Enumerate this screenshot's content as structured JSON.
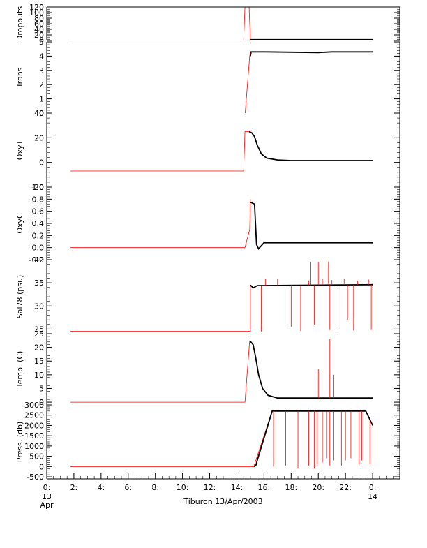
{
  "footer_title": "Tiburon 13/Apr/2003",
  "colors": {
    "raw": "#ff0000",
    "clean": "#000000",
    "axis": "#000000"
  },
  "chart_data": [
    {
      "type": "line",
      "ylabel": "Dropouts",
      "ylim": [
        0,
        120
      ],
      "yticks": [
        0,
        20,
        40,
        60,
        80,
        100,
        120
      ],
      "ytick_labels": [
        "0",
        "20",
        "40",
        "60",
        "80",
        "100",
        "120"
      ],
      "series": [
        {
          "color": "#ff0000",
          "points": [
            [
              1.75,
              0
            ],
            [
              14.5,
              0
            ],
            [
              14.6,
              120
            ],
            [
              14.9,
              120
            ],
            [
              15.0,
              3
            ]
          ]
        },
        {
          "color": "#000000",
          "points": [
            [
              15.0,
              3
            ],
            [
              24.0,
              3
            ]
          ]
        }
      ]
    },
    {
      "type": "line",
      "ylabel": "Trans",
      "ylim": [
        0,
        5
      ],
      "yticks": [
        0,
        1,
        2,
        3,
        4,
        5
      ],
      "ytick_labels": [
        "0",
        "1",
        "2",
        "3",
        "4",
        "5"
      ],
      "series": [
        {
          "color": "#ff0000",
          "points": [
            [
              1.75,
              -0.2
            ],
            [
              14.6,
              -0.2
            ],
            [
              14.95,
              4.0
            ],
            [
              15.0,
              4.3
            ]
          ]
        },
        {
          "color": "#000000",
          "points": [
            [
              15.0,
              4.0
            ],
            [
              15.05,
              4.3
            ],
            [
              16,
              4.3
            ],
            [
              20,
              4.25
            ],
            [
              21,
              4.3
            ],
            [
              24.0,
              4.3
            ]
          ]
        }
      ]
    },
    {
      "type": "line",
      "ylabel": "OxyT",
      "ylim": [
        -20,
        40
      ],
      "yticks": [
        -20,
        0,
        20,
        40
      ],
      "ytick_labels": [
        "-20",
        "0",
        "20",
        "40"
      ],
      "series": [
        {
          "color": "#ff0000",
          "points": [
            [
              1.75,
              -7
            ],
            [
              14.5,
              -7
            ],
            [
              14.6,
              25
            ],
            [
              14.9,
              25
            ]
          ]
        },
        {
          "color": "#000000",
          "points": [
            [
              14.9,
              25
            ],
            [
              15.1,
              24
            ],
            [
              15.3,
              21
            ],
            [
              15.5,
              14
            ],
            [
              15.8,
              7
            ],
            [
              16.2,
              3.5
            ],
            [
              17,
              2
            ],
            [
              18,
              1.5
            ],
            [
              24.0,
              1.5
            ]
          ]
        }
      ]
    },
    {
      "type": "line",
      "ylabel": "OxyC",
      "ylim": [
        -0.2,
        1.0
      ],
      "yticks": [
        -0.2,
        0.0,
        0.2,
        0.4,
        0.6,
        0.8,
        1.0
      ],
      "ytick_labels": [
        "-0.2",
        "0.0",
        "0.2",
        "0.4",
        "0.6",
        "0.8",
        "1.0"
      ],
      "series": [
        {
          "color": "#ff0000",
          "points": [
            [
              1.75,
              0.0
            ],
            [
              14.6,
              0.0
            ],
            [
              14.95,
              0.3
            ],
            [
              15.0,
              0.8
            ]
          ]
        },
        {
          "color": "#000000",
          "points": [
            [
              15.0,
              0.75
            ],
            [
              15.3,
              0.72
            ],
            [
              15.45,
              0.05
            ],
            [
              15.6,
              -0.02
            ],
            [
              16,
              0.08
            ],
            [
              24.0,
              0.08
            ]
          ]
        }
      ]
    },
    {
      "type": "line",
      "ylabel": "Sal78 (psu)",
      "ylim": [
        24,
        40
      ],
      "yticks": [
        25,
        30,
        35,
        40
      ],
      "ytick_labels": [
        "25",
        "30",
        "35",
        "40"
      ],
      "series": [
        {
          "color": "#ff0000",
          "points": [
            [
              1.75,
              24.5
            ],
            [
              15.0,
              24.5
            ],
            [
              15.0,
              34.5
            ]
          ]
        },
        {
          "color": "#000000",
          "points": [
            [
              15.0,
              34.5
            ],
            [
              15.2,
              33.9
            ],
            [
              15.5,
              34.4
            ],
            [
              24.0,
              34.6
            ]
          ]
        }
      ],
      "spikes": [
        [
          15.8,
          24.5
        ],
        [
          16.1,
          35.8
        ],
        [
          17.0,
          35.8
        ],
        [
          17.9,
          25.8
        ],
        [
          18.0,
          25.5
        ],
        [
          18.7,
          24.6
        ],
        [
          19.3,
          35.5
        ],
        [
          19.45,
          39.5
        ],
        [
          19.7,
          26.0
        ],
        [
          20.0,
          39.5
        ],
        [
          20.3,
          35.8
        ],
        [
          20.75,
          39.5
        ],
        [
          20.85,
          24.8
        ],
        [
          21.0,
          35.6
        ],
        [
          21.3,
          24.5
        ],
        [
          21.6,
          25.0
        ],
        [
          21.9,
          35.8
        ],
        [
          22.15,
          27.0
        ],
        [
          22.6,
          24.7
        ],
        [
          22.9,
          35.5
        ],
        [
          23.7,
          35.7
        ],
        [
          23.9,
          24.8
        ]
      ]
    },
    {
      "type": "line",
      "ylabel": "Temp. (C)",
      "ylim": [
        -1,
        25
      ],
      "yticks": [
        0,
        5,
        10,
        15,
        20,
        25
      ],
      "ytick_labels": [
        "0",
        "5",
        "10",
        "15",
        "20",
        "25"
      ],
      "series": [
        {
          "color": "#ff0000",
          "points": [
            [
              1.75,
              0
            ],
            [
              14.6,
              0
            ],
            [
              14.95,
              22.5
            ]
          ]
        },
        {
          "color": "#000000",
          "points": [
            [
              14.95,
              22.5
            ],
            [
              15.2,
              21
            ],
            [
              15.4,
              16
            ],
            [
              15.6,
              10
            ],
            [
              15.9,
              5
            ],
            [
              16.3,
              2.5
            ],
            [
              17,
              1.5
            ],
            [
              24.0,
              1.5
            ]
          ]
        }
      ],
      "spikes": [
        [
          20.0,
          12.0
        ],
        [
          20.85,
          23.0
        ],
        [
          21.1,
          10.0
        ]
      ]
    },
    {
      "type": "line",
      "ylabel": "Press. (db)",
      "ylim": [
        -600,
        3000
      ],
      "yticks": [
        -500,
        0,
        500,
        1000,
        1500,
        2000,
        2500,
        3000
      ],
      "ytick_labels": [
        "-500",
        "0",
        "500",
        "1000",
        "1500",
        "2000",
        "2500",
        "3000"
      ],
      "series": [
        {
          "color": "#ff0000",
          "points": [
            [
              1.75,
              -5
            ],
            [
              15.0,
              -5
            ],
            [
              15.25,
              0
            ],
            [
              16.6,
              2700
            ]
          ]
        },
        {
          "color": "#000000",
          "points": [
            [
              15.25,
              0
            ],
            [
              15.4,
              50
            ],
            [
              15.5,
              300
            ],
            [
              16.6,
              2700
            ],
            [
              23.5,
              2700
            ],
            [
              24.0,
              2000
            ]
          ]
        }
      ],
      "spikes": [
        [
          16.7,
          0
        ],
        [
          17.6,
          50
        ],
        [
          18.5,
          -100
        ],
        [
          19.3,
          50
        ],
        [
          19.7,
          -100
        ],
        [
          19.9,
          50
        ],
        [
          20.3,
          200
        ],
        [
          20.6,
          400
        ],
        [
          20.85,
          50
        ],
        [
          21.1,
          300
        ],
        [
          21.7,
          50
        ],
        [
          22.0,
          300
        ],
        [
          22.4,
          400
        ],
        [
          23.0,
          100
        ],
        [
          23.2,
          300
        ],
        [
          23.8,
          100
        ]
      ]
    }
  ],
  "x_axis": {
    "range": [
      0,
      26
    ],
    "tick_values": [
      0,
      2,
      4,
      6,
      8,
      10,
      12,
      14,
      16,
      18,
      20,
      22,
      24
    ],
    "tick_labels": [
      "0:",
      "2:",
      "4:",
      "6:",
      "8:",
      "10:",
      "12:",
      "14:",
      "16:",
      "18:",
      "20:",
      "22:",
      "0:"
    ],
    "date_labels": [
      {
        "value": 0,
        "lines": [
          "13",
          "Apr"
        ]
      },
      {
        "value": 24,
        "lines": [
          "14"
        ]
      }
    ]
  }
}
